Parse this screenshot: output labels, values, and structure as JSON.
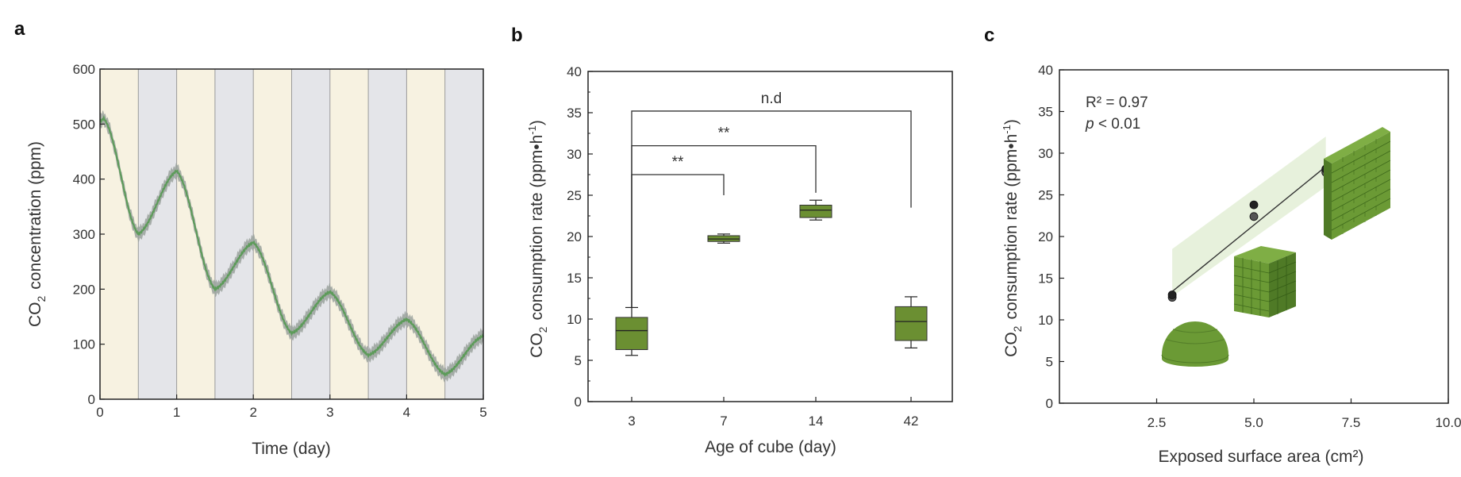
{
  "chart_data": [
    {
      "panel": "a",
      "type": "line",
      "xlabel": "Time (day)",
      "ylabel_prefix": "CO",
      "ylabel_sub": "2",
      "ylabel_suffix": "concentration (ppm)",
      "xlim": [
        0,
        5
      ],
      "ylim": [
        0,
        600
      ],
      "xticks": [
        0,
        1,
        2,
        3,
        4,
        5
      ],
      "yticks": [
        0,
        100,
        200,
        300,
        400,
        500,
        600
      ],
      "bands": {
        "light": [
          "#f7f2e1",
          "#e4e5e9"
        ],
        "width_days": 0.5,
        "band_start_day": 0
      },
      "series": [
        {
          "x": [
            0,
            0.05,
            0.5,
            1,
            1.5,
            2,
            2.5,
            3,
            3.5,
            4,
            4.5,
            5
          ],
          "y": [
            505,
            510,
            300,
            415,
            200,
            285,
            120,
            195,
            80,
            145,
            45,
            115
          ],
          "band_halfwidth": 12,
          "color": "#5d9b5a",
          "band_color": "#9aa29c"
        }
      ]
    },
    {
      "panel": "b",
      "type": "box",
      "xlabel": "Age of cube (day)",
      "ylabel_prefix": "CO",
      "ylabel_sub": "2",
      "ylabel_suffix": "consumption rate  (ppm•h",
      "ylabel_sup": "-1",
      "ylabel_close": ")",
      "ylim": [
        0,
        40
      ],
      "yticks": [
        0,
        5,
        10,
        15,
        20,
        25,
        30,
        35,
        40
      ],
      "categories": [
        "3",
        "7",
        "14",
        "42"
      ],
      "boxes": [
        {
          "min": 5.6,
          "q1": 6.3,
          "median": 8.6,
          "q3": 10.2,
          "max": 11.4
        },
        {
          "min": 19.2,
          "q1": 19.4,
          "median": 19.7,
          "q3": 20.1,
          "max": 20.3
        },
        {
          "min": 22.0,
          "q1": 22.3,
          "median": 23.2,
          "q3": 23.8,
          "max": 24.4
        },
        {
          "min": 6.5,
          "q1": 7.4,
          "median": 9.7,
          "q3": 11.5,
          "max": 12.7
        }
      ],
      "box_color": "#6b8f32",
      "brackets": [
        {
          "from": 0,
          "to": 1,
          "y": 27.5,
          "drop_to": 25.0,
          "label": "**"
        },
        {
          "from": 0,
          "to": 2,
          "y": 31.0,
          "drop_to": 25.3,
          "label": "**"
        },
        {
          "from": 0,
          "to": 3,
          "y": 35.2,
          "drop_to": 23.5,
          "label": "n.d"
        }
      ]
    },
    {
      "panel": "c",
      "type": "scatter",
      "xlabel": "Exposed surface area (cm²)",
      "ylabel_prefix": "CO",
      "ylabel_sub": "2",
      "ylabel_suffix": "consumption rate (ppm•h",
      "ylabel_sup": "-1",
      "ylabel_close": ")",
      "xlim": [
        0,
        10
      ],
      "ylim": [
        0,
        40
      ],
      "xticks": [
        2.5,
        5.0,
        7.5,
        10.0
      ],
      "xtick_labels": [
        "2.5",
        "5.0",
        "7.5",
        "10.0"
      ],
      "yticks": [
        0,
        5,
        10,
        15,
        20,
        25,
        30,
        35,
        40
      ],
      "points": [
        {
          "x": 2.9,
          "y": 12.7
        },
        {
          "x": 2.9,
          "y": 13.0
        },
        {
          "x": 5.0,
          "y": 22.4
        },
        {
          "x": 5.0,
          "y": 23.8
        },
        {
          "x": 6.85,
          "y": 27.7
        },
        {
          "x": 6.85,
          "y": 28.1
        }
      ],
      "fit": {
        "x": [
          2.9,
          6.85
        ],
        "y": [
          13.4,
          28.4
        ]
      },
      "ci": {
        "x": [
          2.9,
          6.85
        ],
        "upper": [
          18.5,
          32.0
        ],
        "lower": [
          12.8,
          26.0
        ]
      },
      "annotation_r2": "R² = 0.97",
      "annotation_p_italic": "p",
      "annotation_p_rest": " < 0.01",
      "fill_color": "#6b9a35"
    }
  ],
  "panel_labels": [
    "a",
    "b",
    "c"
  ]
}
